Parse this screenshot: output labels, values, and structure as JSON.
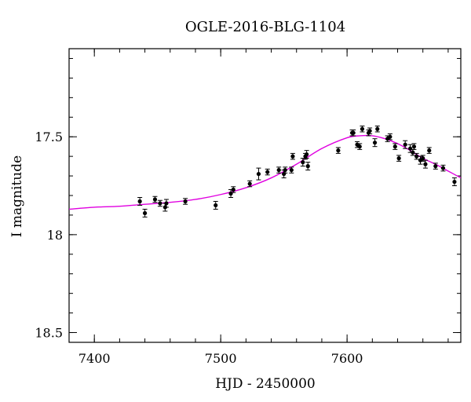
{
  "chart_data": {
    "type": "scatter",
    "title": "OGLE-2016-BLG-1104",
    "xlabel": "HJD - 2450000",
    "ylabel": "I magnitude",
    "xlim": [
      7380,
      7690
    ],
    "ylim": [
      18.55,
      17.05
    ],
    "y_inverted": true,
    "grid": false,
    "x_ticks": [
      7400,
      7500,
      7600
    ],
    "y_ticks": [
      17.5,
      18,
      18.5
    ],
    "x_minor_step": 20,
    "y_minor_step": 0.1,
    "colors": {
      "points": "#000000",
      "model": "#e000e0"
    },
    "series": [
      {
        "type": "scatter",
        "x": [
          7436,
          7440,
          7448,
          7452,
          7456,
          7457,
          7472,
          7496,
          7508,
          7510,
          7523,
          7530,
          7537,
          7546,
          7550,
          7551,
          7556,
          7557,
          7565,
          7567,
          7568,
          7569,
          7593,
          7604,
          7605,
          7608,
          7610,
          7612,
          7617,
          7618,
          7622,
          7624,
          7632,
          7634,
          7638,
          7641,
          7646,
          7650,
          7652,
          7653,
          7655,
          7658,
          7660,
          7662,
          7665,
          7670,
          7676,
          7685
        ],
        "y": [
          17.83,
          17.89,
          17.82,
          17.84,
          17.86,
          17.84,
          17.83,
          17.85,
          17.79,
          17.77,
          17.74,
          17.69,
          17.68,
          17.67,
          17.69,
          17.67,
          17.67,
          17.6,
          17.63,
          17.6,
          17.59,
          17.65,
          17.57,
          17.48,
          17.48,
          17.54,
          17.55,
          17.46,
          17.48,
          17.47,
          17.53,
          17.46,
          17.51,
          17.5,
          17.55,
          17.61,
          17.54,
          17.56,
          17.58,
          17.55,
          17.6,
          17.62,
          17.61,
          17.64,
          17.57,
          17.65,
          17.66,
          17.73
        ],
        "err": [
          0.02,
          0.02,
          0.015,
          0.015,
          0.02,
          0.02,
          0.015,
          0.02,
          0.02,
          0.015,
          0.015,
          0.03,
          0.015,
          0.015,
          0.02,
          0.015,
          0.015,
          0.015,
          0.02,
          0.015,
          0.02,
          0.02,
          0.015,
          0.015,
          0.015,
          0.015,
          0.015,
          0.015,
          0.015,
          0.015,
          0.02,
          0.015,
          0.015,
          0.015,
          0.015,
          0.015,
          0.02,
          0.02,
          0.015,
          0.015,
          0.015,
          0.02,
          0.015,
          0.02,
          0.015,
          0.015,
          0.015,
          0.02
        ]
      },
      {
        "type": "line",
        "x": [
          7380,
          7400,
          7420,
          7440,
          7460,
          7480,
          7500,
          7520,
          7540,
          7560,
          7580,
          7600,
          7610,
          7620,
          7630,
          7640,
          7650,
          7660,
          7670,
          7680,
          7690
        ],
        "y": [
          17.87,
          17.86,
          17.855,
          17.845,
          17.835,
          17.82,
          17.795,
          17.76,
          17.71,
          17.64,
          17.56,
          17.505,
          17.495,
          17.495,
          17.51,
          17.535,
          17.57,
          17.61,
          17.64,
          17.675,
          17.71
        ]
      }
    ]
  }
}
